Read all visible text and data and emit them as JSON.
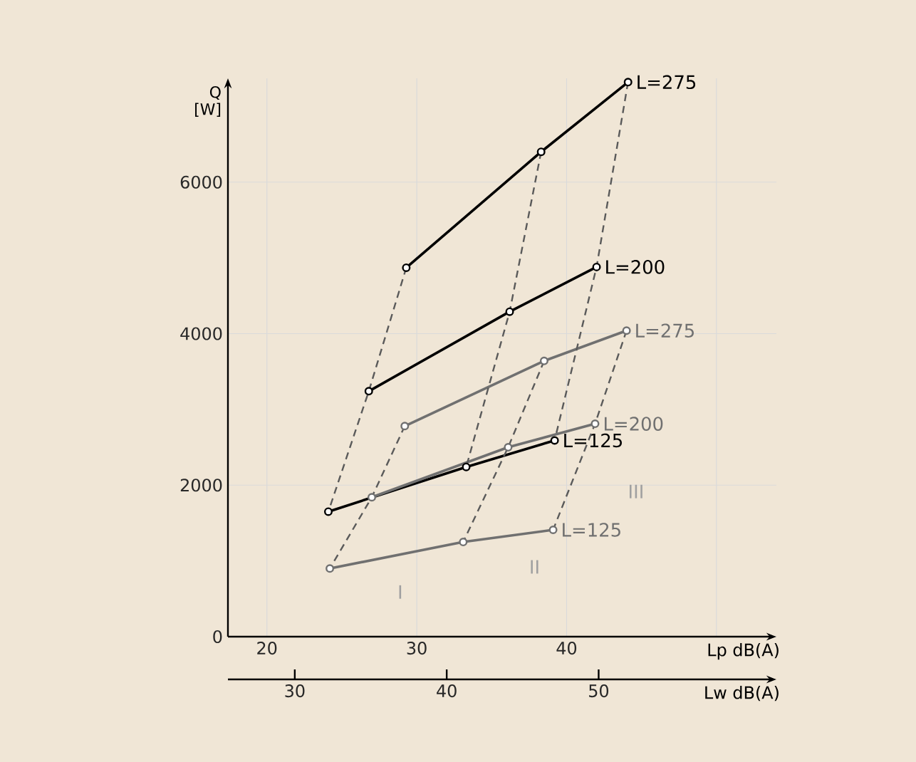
{
  "chart_data": {
    "type": "line",
    "ylabel": "Q [W]",
    "xlabel": "Lp dB(A)",
    "x2label": "Lw dB(A)",
    "xlim": [
      17.4,
      54
    ],
    "xticks": [
      20,
      30,
      40,
      {
        "value": 50,
        "label": null
      }
    ],
    "ylim": [
      0,
      7370
    ],
    "yticks": [
      0,
      2000,
      4000,
      6000
    ],
    "x2lim": [
      25.6,
      61.7
    ],
    "x2ticks": [
      30,
      40,
      50
    ],
    "grid": true,
    "marker": "circle",
    "line_style": "solid",
    "series": [
      {
        "name": "L=275",
        "color": "#000000",
        "x": [
          29.3,
          38.3,
          44.1
        ],
        "values": [
          4870,
          6400,
          7320
        ]
      },
      {
        "name": "L=200",
        "color": "#000000",
        "x": [
          26.8,
          36.2,
          42.0
        ],
        "values": [
          3240,
          4290,
          4880
        ]
      },
      {
        "name": "L=125",
        "color": "#000000",
        "x": [
          24.1,
          33.3,
          39.2
        ],
        "values": [
          1650,
          2240,
          2590
        ]
      },
      {
        "name": "L=275",
        "color": "#707070",
        "x": [
          29.2,
          38.5,
          44.0
        ],
        "values": [
          2780,
          3640,
          4040
        ]
      },
      {
        "name": "L=200",
        "color": "#707070",
        "x": [
          27.0,
          36.1,
          41.9
        ],
        "values": [
          1840,
          2500,
          2810
        ]
      },
      {
        "name": "L=125",
        "color": "#707070",
        "x": [
          24.2,
          33.1,
          39.1
        ],
        "values": [
          900,
          1250,
          1410
        ]
      },
      {
        "color": "#5a5a5a",
        "line_style": "dashed",
        "marker": "none",
        "x": [
          29.3,
          26.8,
          24.1
        ],
        "values": [
          4870,
          3240,
          1650
        ]
      },
      {
        "color": "#5a5a5a",
        "line_style": "dashed",
        "marker": "none",
        "x": [
          38.3,
          36.2,
          33.3
        ],
        "values": [
          6400,
          4290,
          2240
        ]
      },
      {
        "color": "#5a5a5a",
        "line_style": "dashed",
        "marker": "none",
        "x": [
          44.1,
          42.0,
          39.2
        ],
        "values": [
          7320,
          4880,
          2590
        ]
      },
      {
        "color": "#5a5a5a",
        "line_style": "dashed",
        "marker": "none",
        "x": [
          29.2,
          27.0,
          24.2
        ],
        "values": [
          2780,
          1840,
          900
        ]
      },
      {
        "color": "#5a5a5a",
        "line_style": "dashed",
        "marker": "none",
        "x": [
          38.5,
          36.1,
          33.1
        ],
        "values": [
          3640,
          2500,
          1250
        ]
      },
      {
        "color": "#5a5a5a",
        "line_style": "dashed",
        "marker": "none",
        "x": [
          44.0,
          41.9,
          39.1
        ],
        "values": [
          4040,
          2810,
          1410
        ]
      }
    ],
    "annotations": [
      "I",
      "II",
      "III"
    ]
  }
}
